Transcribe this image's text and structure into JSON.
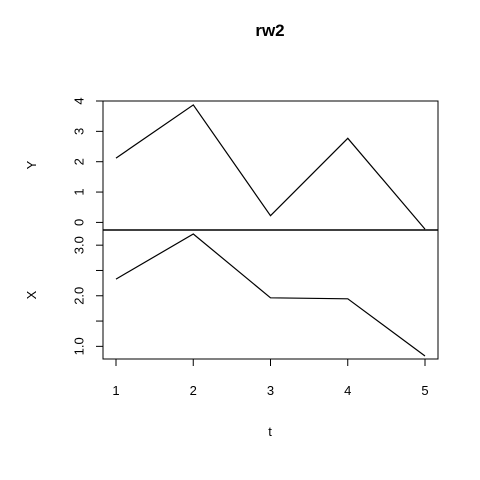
{
  "chart_data": {
    "type": "line",
    "title": "rw2",
    "xlabel": "t",
    "x": [
      1,
      2,
      3,
      4,
      5
    ],
    "xlim": [
      1,
      5
    ],
    "x_ticks": [
      "1",
      "2",
      "3",
      "4",
      "5"
    ],
    "grid": false,
    "panels": [
      {
        "ylabel": "Y",
        "ylim": [
          -0.25,
          4.0
        ],
        "y_ticks": [
          0,
          1,
          2,
          3,
          4
        ],
        "y_tick_labels": [
          "0",
          "1",
          "2",
          "3",
          "4"
        ],
        "values": [
          2.12,
          3.87,
          0.22,
          2.77,
          -0.22
        ]
      },
      {
        "ylabel": "X",
        "ylim": [
          0.75,
          3.3
        ],
        "y_ticks": [
          1.0,
          1.5,
          2.0,
          2.5,
          3.0
        ],
        "y_tick_labels": [
          "1.0",
          "",
          "2.0",
          "",
          "3.0"
        ],
        "values": [
          2.33,
          3.22,
          1.96,
          1.94,
          0.81
        ]
      }
    ]
  }
}
